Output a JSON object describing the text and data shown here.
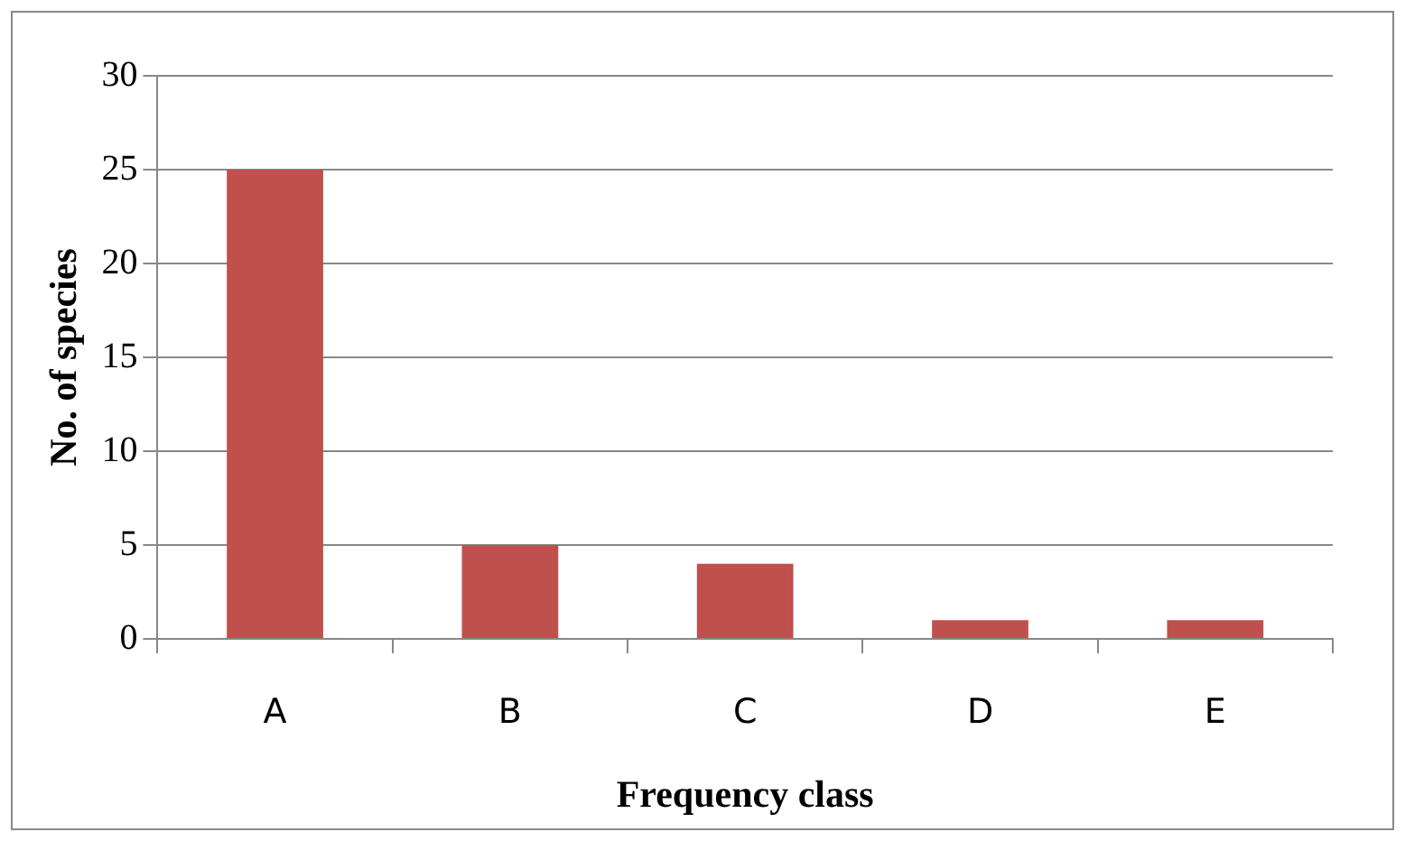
{
  "chart_data": {
    "type": "bar",
    "xlabel": "Frequency class",
    "ylabel": "No. of species",
    "categories": [
      "A",
      "B",
      "C",
      "D",
      "E"
    ],
    "values": [
      25,
      5,
      4,
      1,
      1
    ],
    "color": "#c0504d",
    "ylim": [
      0,
      30
    ],
    "yticks": [
      0,
      5,
      10,
      15,
      20,
      25,
      30
    ],
    "grid": "y",
    "legend": false
  }
}
